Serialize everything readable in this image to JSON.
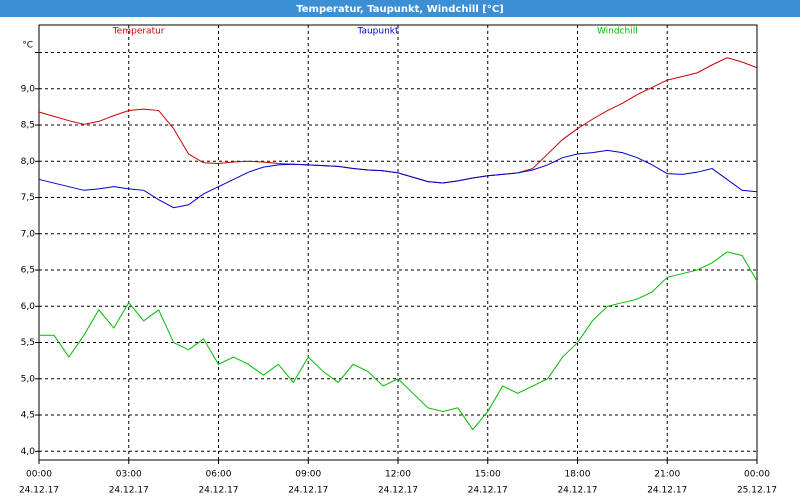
{
  "chart_data": {
    "type": "line",
    "title": "Temperatur, Taupunkt, Windchill [°C]",
    "ylabel": "°C",
    "x": [
      0,
      0.5,
      1,
      1.5,
      2,
      2.5,
      3,
      3.5,
      4,
      4.5,
      5,
      5.5,
      6,
      6.5,
      7,
      7.5,
      8,
      8.5,
      9,
      9.5,
      10,
      10.5,
      11,
      11.5,
      12,
      12.5,
      13,
      13.5,
      14,
      14.5,
      15,
      15.5,
      16,
      16.5,
      17,
      17.5,
      18,
      18.5,
      19,
      19.5,
      20,
      20.5,
      21,
      21.5,
      22,
      22.5,
      23,
      23.5,
      24
    ],
    "series": [
      {
        "name": "Temperatur",
        "color": "#cc0000",
        "values": [
          8.68,
          8.62,
          8.56,
          8.51,
          8.55,
          8.63,
          8.7,
          8.72,
          8.7,
          8.45,
          8.1,
          7.98,
          7.97,
          7.99,
          8.0,
          7.99,
          7.97,
          7.96,
          7.95,
          7.94,
          7.93,
          7.9,
          7.88,
          7.87,
          7.84,
          7.78,
          7.72,
          7.7,
          7.73,
          7.77,
          7.8,
          7.82,
          7.84,
          7.9,
          8.1,
          8.3,
          8.45,
          8.58,
          8.7,
          8.8,
          8.92,
          9.02,
          9.12,
          9.17,
          9.22,
          9.33,
          9.43,
          9.37,
          9.29
        ]
      },
      {
        "name": "Taupunkt",
        "color": "#0000cc",
        "values": [
          7.75,
          7.7,
          7.65,
          7.6,
          7.62,
          7.65,
          7.62,
          7.6,
          7.47,
          7.36,
          7.4,
          7.55,
          7.65,
          7.75,
          7.85,
          7.92,
          7.95,
          7.96,
          7.95,
          7.94,
          7.93,
          7.9,
          7.88,
          7.87,
          7.84,
          7.78,
          7.72,
          7.7,
          7.73,
          7.77,
          7.8,
          7.82,
          7.84,
          7.88,
          7.95,
          8.05,
          8.1,
          8.12,
          8.15,
          8.12,
          8.05,
          7.95,
          7.83,
          7.82,
          7.85,
          7.9,
          7.75,
          7.6,
          7.58
        ]
      },
      {
        "name": "Windchill",
        "color": "#00bb00",
        "values": [
          5.6,
          5.6,
          5.3,
          5.6,
          5.95,
          5.7,
          6.05,
          5.8,
          5.95,
          5.5,
          5.4,
          5.55,
          5.2,
          5.3,
          5.2,
          5.05,
          5.2,
          4.95,
          5.3,
          5.1,
          4.95,
          5.2,
          5.1,
          4.9,
          5.0,
          4.8,
          4.6,
          4.55,
          4.6,
          4.3,
          4.55,
          4.9,
          4.8,
          4.9,
          5.0,
          5.3,
          5.5,
          5.8,
          6.0,
          6.05,
          6.1,
          6.2,
          6.4,
          6.45,
          6.5,
          6.6,
          6.75,
          6.7,
          6.35
        ]
      }
    ],
    "xlim": [
      0,
      24
    ],
    "xticks": [
      {
        "value": 0,
        "label": "00:00",
        "date": "24.12.17"
      },
      {
        "value": 3,
        "label": "03:00",
        "date": "24.12.17"
      },
      {
        "value": 6,
        "label": "06:00",
        "date": "24.12.17"
      },
      {
        "value": 9,
        "label": "09:00",
        "date": "24.12.17"
      },
      {
        "value": 12,
        "label": "12:00",
        "date": "24.12.17"
      },
      {
        "value": 15,
        "label": "15:00",
        "date": "24.12.17"
      },
      {
        "value": 18,
        "label": "18:00",
        "date": "24.12.17"
      },
      {
        "value": 21,
        "label": "21:00",
        "date": "24.12.17"
      },
      {
        "value": 24,
        "label": "00:00",
        "date": "25.12.17"
      }
    ],
    "ylim": [
      3.88,
      9.88
    ],
    "yticks": [
      {
        "value": 4,
        "label": "4,0"
      },
      {
        "value": 4.5,
        "label": "4,5"
      },
      {
        "value": 5,
        "label": "5,0"
      },
      {
        "value": 5.5,
        "label": "5,5"
      },
      {
        "value": 6,
        "label": "6,0"
      },
      {
        "value": 6.5,
        "label": "6,5"
      },
      {
        "value": 7,
        "label": "7,0"
      },
      {
        "value": 7.5,
        "label": "7,5"
      },
      {
        "value": 8,
        "label": "8,0"
      },
      {
        "value": 8.5,
        "label": "8,5"
      },
      {
        "value": 9,
        "label": "9,0"
      },
      {
        "value": 9.5,
        "label": null
      }
    ],
    "grid": true
  }
}
